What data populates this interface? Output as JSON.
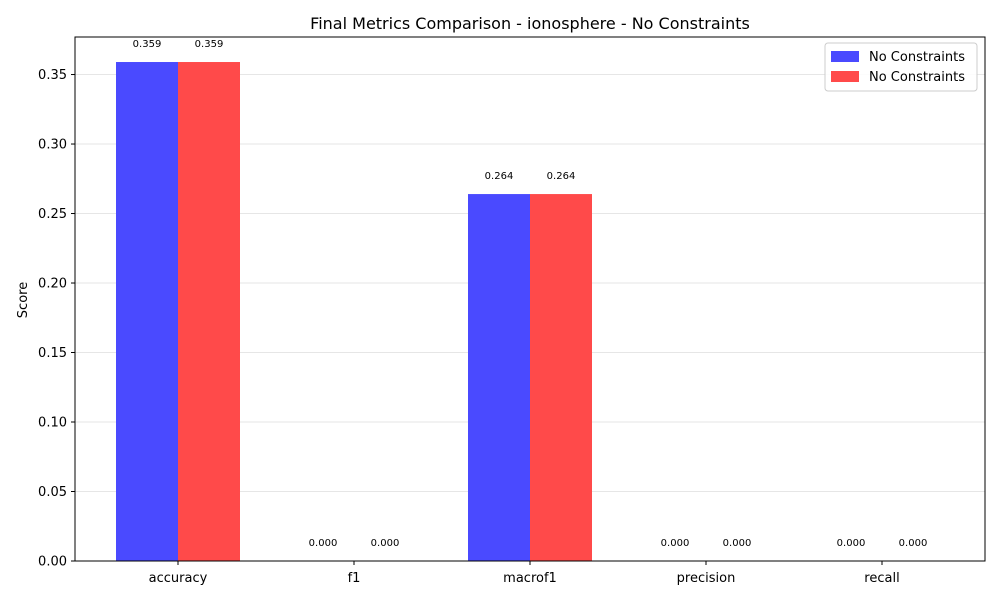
{
  "chart_data": {
    "type": "bar",
    "title": "Final Metrics Comparison - ionosphere - No Constraints",
    "xlabel": "",
    "ylabel": "Score",
    "categories": [
      "accuracy",
      "f1",
      "macrof1",
      "precision",
      "recall"
    ],
    "series": [
      {
        "name": "No Constraints",
        "color": "#4a4aff",
        "values": [
          0.359,
          0.0,
          0.264,
          0.0,
          0.0
        ],
        "labels": [
          "0.359",
          "0.000",
          "0.264",
          "0.000",
          "0.000"
        ]
      },
      {
        "name": "No Constraints",
        "color": "#ff4a4a",
        "values": [
          0.359,
          0.0,
          0.264,
          0.0,
          0.0
        ],
        "labels": [
          "0.359",
          "0.000",
          "0.264",
          "0.000",
          "0.000"
        ]
      }
    ],
    "ylim": [
      0,
      0.377
    ],
    "yticks": [
      0.0,
      0.05,
      0.1,
      0.15,
      0.2,
      0.25,
      0.3,
      0.35
    ],
    "ytick_labels": [
      "0.00",
      "0.05",
      "0.10",
      "0.15",
      "0.20",
      "0.25",
      "0.30",
      "0.35"
    ],
    "grid": "y",
    "legend_position": "top-right"
  }
}
